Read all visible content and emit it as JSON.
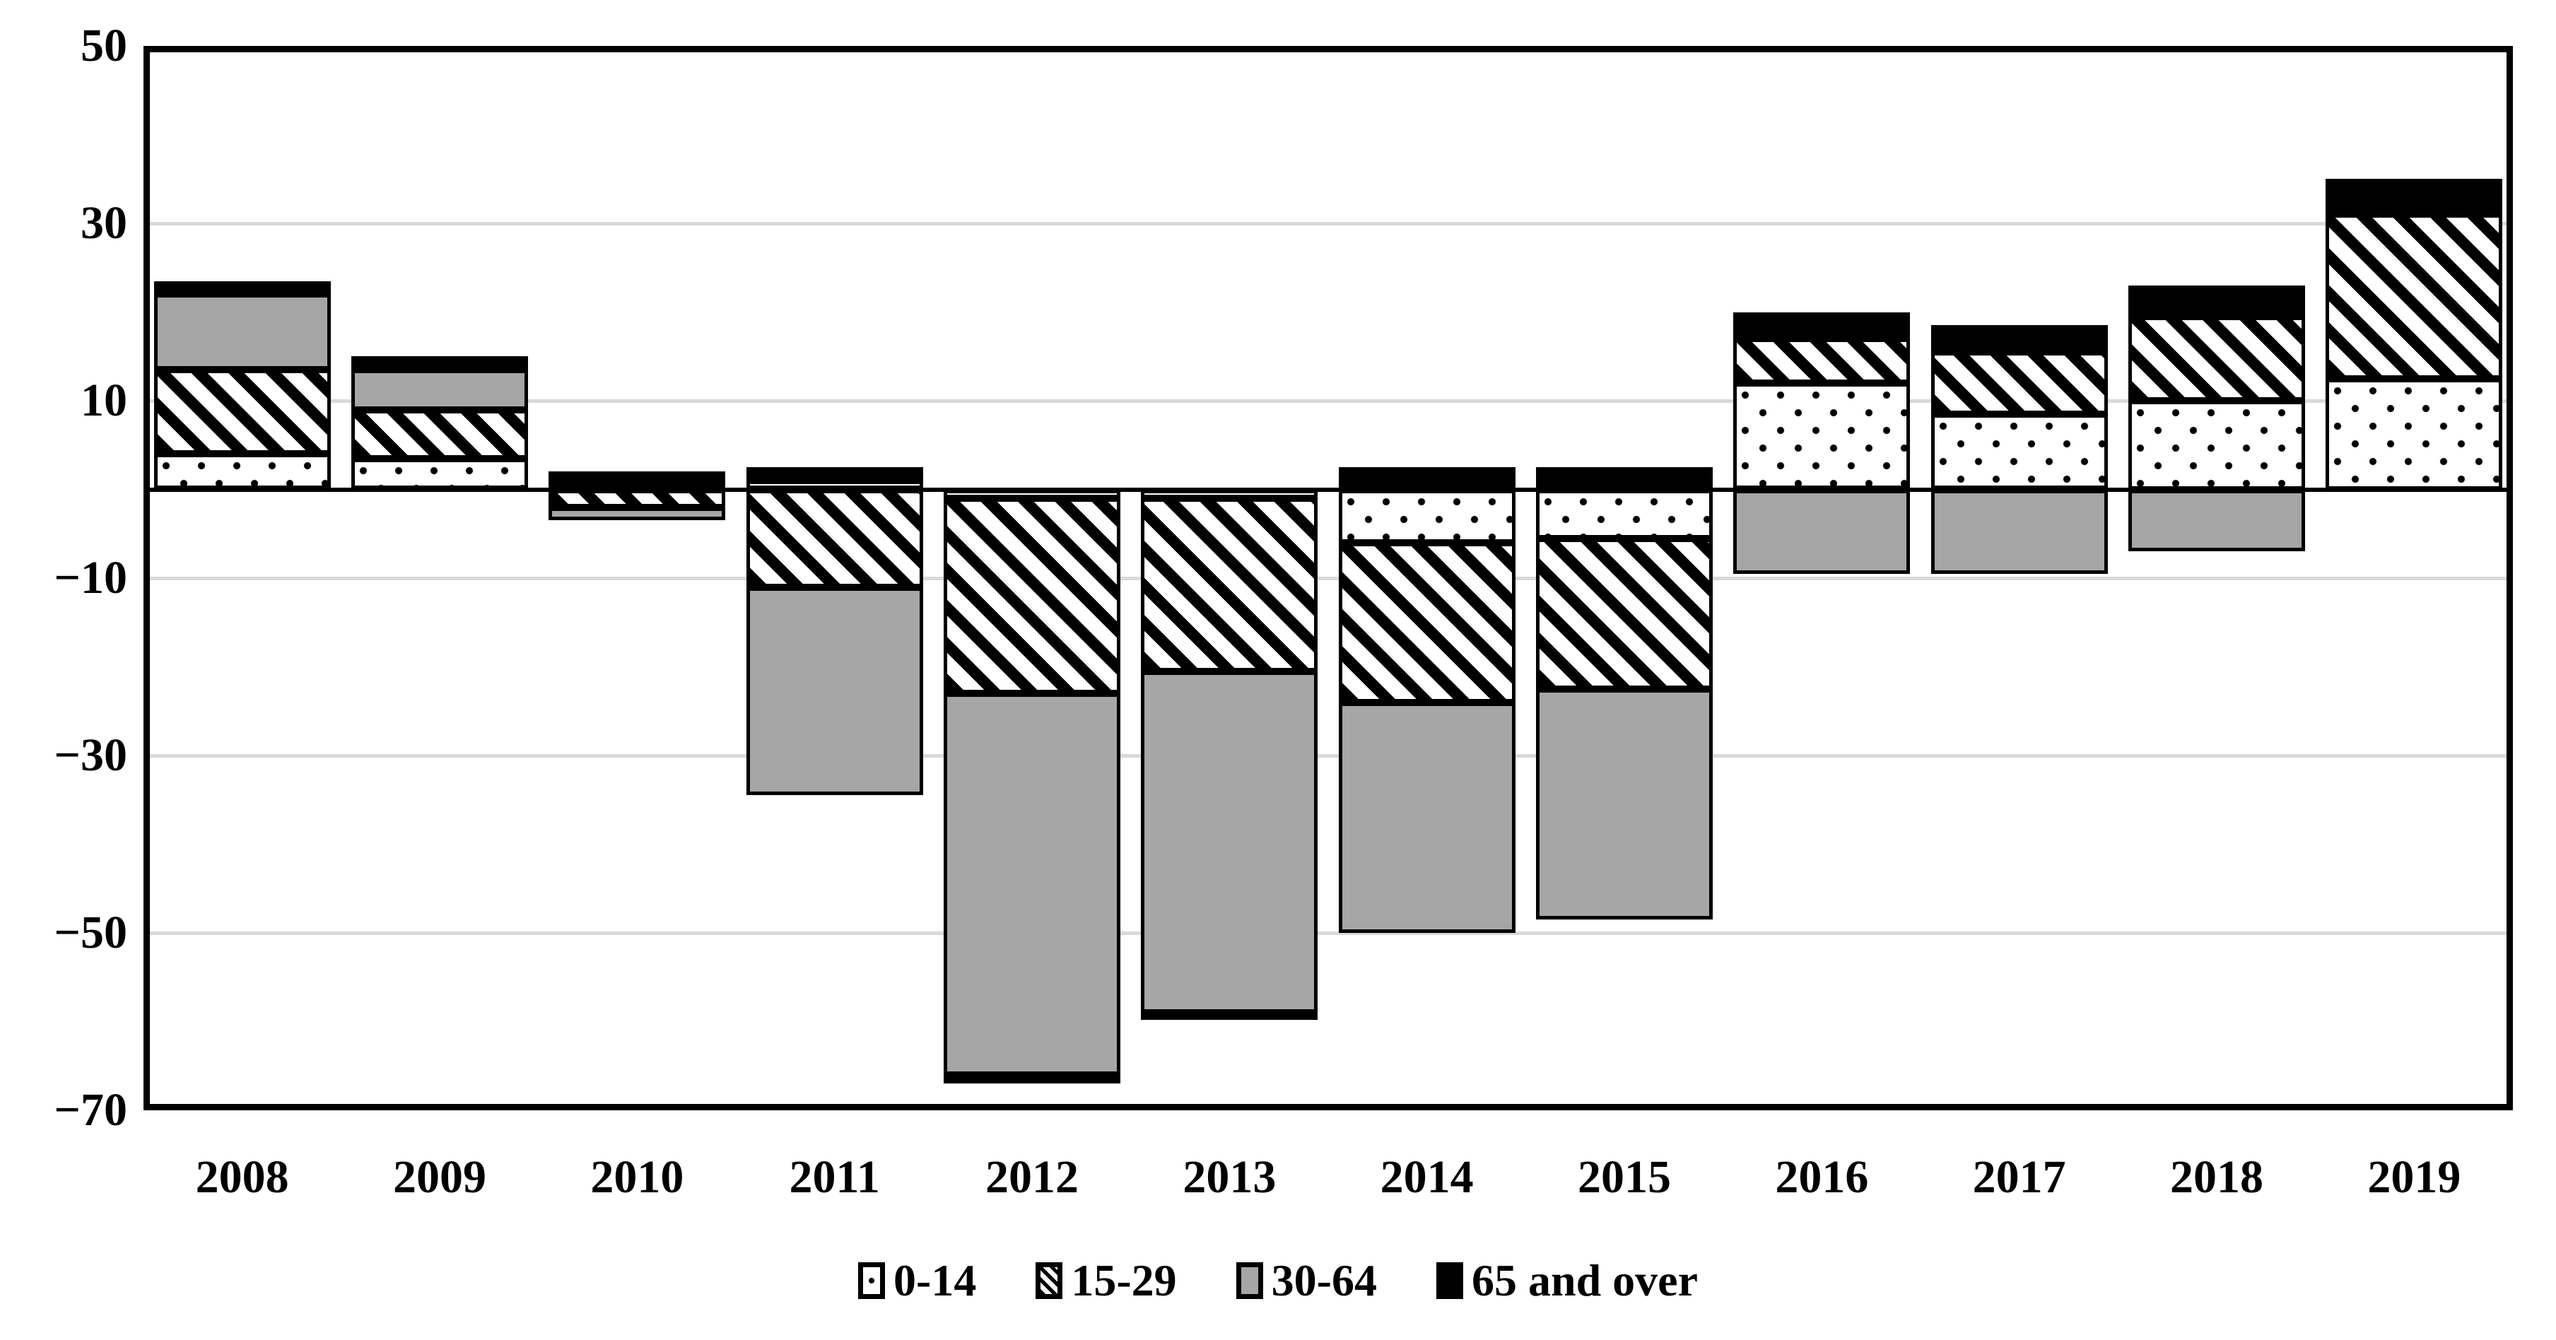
{
  "page": {
    "background": "#ffffff"
  },
  "chart_data": {
    "type": "bar",
    "stacked": true,
    "title": "",
    "xlabel": "",
    "ylabel": "",
    "categories": [
      "2008",
      "2009",
      "2010",
      "2011",
      "2012",
      "2013",
      "2014",
      "2015",
      "2016",
      "2017",
      "2018",
      "2019"
    ],
    "series": [
      {
        "name": "0-14",
        "pattern": "dots",
        "swatch_colors": [
          "#ffffff",
          "#000000"
        ],
        "values": [
          4,
          3.5,
          0,
          1,
          -1,
          -1,
          -6,
          -5.5,
          12,
          8.5,
          10,
          12.5
        ]
      },
      {
        "name": "15-29",
        "pattern": "diagonal-hatch",
        "swatch_colors": [
          "#ffffff",
          "#000000"
        ],
        "values": [
          9.5,
          5.5,
          -2,
          -11,
          -22,
          -19.5,
          -18,
          -17,
          5,
          7,
          9.5,
          18.5
        ]
      },
      {
        "name": "30-64",
        "pattern": "solid-gray",
        "color": "#a6a6a6",
        "values": [
          8.5,
          4.5,
          -1.5,
          -23.5,
          -43,
          -38.5,
          -26,
          -26,
          -9.5,
          -9.5,
          -7,
          0
        ]
      },
      {
        "name": "65 and over",
        "pattern": "solid-black",
        "color": "#000000",
        "values": [
          1.5,
          1.5,
          2,
          1.5,
          -1,
          -0.5,
          2.5,
          2.5,
          3,
          3,
          3.5,
          4
        ]
      }
    ],
    "ylim": [
      -70,
      50
    ],
    "ytick_step": 20,
    "yticks": [
      50,
      30,
      10,
      -10,
      -30,
      -50,
      -70
    ],
    "y_tick_labels": [
      "50",
      "30",
      "10",
      "−10",
      "−30",
      "−50",
      "−70"
    ],
    "gridline_values": [
      30,
      10,
      -10,
      -30,
      -50
    ],
    "grid_on": true,
    "grid_color": "#d9d9d9",
    "axis_color": "#000000",
    "bar_border_color": "#000000",
    "legend_position": "bottom",
    "legend_labels": [
      "0-14",
      "15-29",
      "30-64",
      "65 and over"
    ]
  }
}
